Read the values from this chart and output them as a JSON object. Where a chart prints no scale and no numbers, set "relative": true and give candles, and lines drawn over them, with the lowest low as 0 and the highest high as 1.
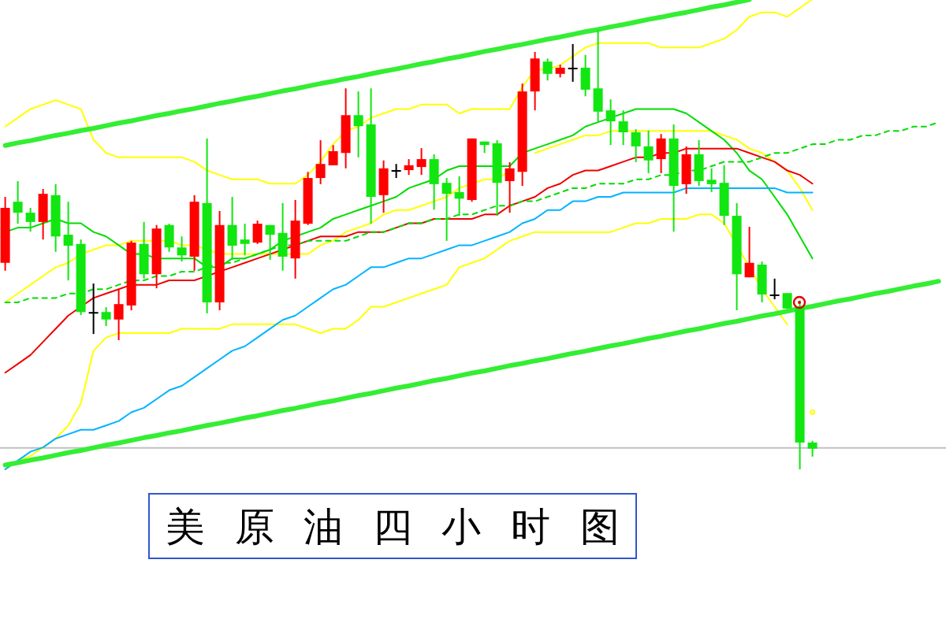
{
  "chart_data": {
    "type": "candlestick",
    "title": "美原油四小时图",
    "relative": true,
    "categories": [
      null,
      null,
      null,
      null,
      null,
      null,
      null,
      null,
      null,
      null,
      null,
      null,
      null,
      null,
      null,
      null,
      null,
      null,
      null,
      null,
      null,
      null,
      null,
      null,
      null,
      null,
      null,
      null,
      null,
      null,
      null,
      null,
      null,
      null,
      null,
      null,
      null,
      null,
      null,
      null,
      null,
      null,
      null,
      null,
      null,
      null,
      null,
      null,
      null,
      null,
      null,
      null,
      null,
      null,
      null,
      null,
      null,
      null,
      null,
      null,
      null,
      null,
      null,
      null,
      null,
      null,
      null,
      null,
      null,
      null,
      null,
      null,
      null,
      null,
      null
    ],
    "ohlc": [
      [
        0.47,
        0.62,
        0.452,
        0.595
      ],
      [
        0.609,
        0.656,
        0.559,
        0.584
      ],
      [
        0.584,
        0.595,
        0.541,
        0.563
      ],
      [
        0.563,
        0.638,
        0.523,
        0.627
      ],
      [
        0.624,
        0.649,
        0.495,
        0.53
      ],
      [
        0.534,
        0.609,
        0.43,
        0.509
      ],
      [
        0.513,
        0.523,
        0.351,
        0.358
      ],
      [
        0.358,
        0.423,
        0.308,
        0.358
      ],
      [
        0.358,
        0.369,
        0.326,
        0.341
      ],
      [
        0.341,
        0.409,
        0.294,
        0.376
      ],
      [
        0.373,
        0.52,
        0.362,
        0.516
      ],
      [
        0.513,
        0.563,
        0.434,
        0.444
      ],
      [
        0.444,
        0.556,
        0.412,
        0.548
      ],
      [
        0.556,
        0.559,
        0.495,
        0.505
      ],
      [
        0.505,
        0.53,
        0.473,
        0.487
      ],
      [
        0.484,
        0.624,
        0.452,
        0.609
      ],
      [
        0.606,
        0.753,
        0.355,
        0.38
      ],
      [
        0.38,
        0.588,
        0.362,
        0.556
      ],
      [
        0.556,
        0.62,
        0.477,
        0.509
      ],
      [
        0.523,
        0.559,
        0.487,
        0.513
      ],
      [
        0.516,
        0.566,
        0.513,
        0.559
      ],
      [
        0.556,
        0.556,
        0.477,
        0.534
      ],
      [
        0.538,
        0.606,
        0.452,
        0.484
      ],
      [
        0.48,
        0.613,
        0.434,
        0.566
      ],
      [
        0.559,
        0.677,
        0.556,
        0.663
      ],
      [
        0.663,
        0.749,
        0.649,
        0.695
      ],
      [
        0.692,
        0.738,
        0.692,
        0.724
      ],
      [
        0.72,
        0.867,
        0.685,
        0.806
      ],
      [
        0.806,
        0.86,
        0.71,
        0.781
      ],
      [
        0.785,
        0.867,
        0.559,
        0.62
      ],
      [
        0.624,
        0.703,
        0.584,
        0.685
      ],
      [
        0.681,
        0.695,
        0.663,
        0.681
      ],
      [
        0.681,
        0.706,
        0.67,
        0.692
      ],
      [
        0.688,
        0.731,
        0.67,
        0.706
      ],
      [
        0.706,
        0.717,
        0.591,
        0.649
      ],
      [
        0.652,
        0.663,
        0.52,
        0.627
      ],
      [
        0.631,
        0.667,
        0.577,
        0.616
      ],
      [
        0.613,
        0.753,
        0.609,
        0.753
      ],
      [
        0.746,
        0.746,
        0.72,
        0.738
      ],
      [
        0.742,
        0.749,
        0.577,
        0.652
      ],
      [
        0.656,
        0.699,
        0.584,
        0.685
      ],
      [
        0.677,
        0.878,
        0.645,
        0.86
      ],
      [
        0.86,
        0.95,
        0.817,
        0.935
      ],
      [
        0.928,
        0.935,
        0.885,
        0.9
      ],
      [
        0.9,
        0.921,
        0.892,
        0.914
      ],
      [
        0.914,
        0.968,
        0.882,
        0.914
      ],
      [
        0.914,
        0.943,
        0.849,
        0.864
      ],
      [
        0.867,
        1.0,
        0.792,
        0.814
      ],
      [
        0.817,
        0.842,
        0.738,
        0.792
      ],
      [
        0.792,
        0.817,
        0.738,
        0.767
      ],
      [
        0.767,
        0.774,
        0.699,
        0.735
      ],
      [
        0.735,
        0.771,
        0.674,
        0.703
      ],
      [
        0.706,
        0.763,
        0.674,
        0.753
      ],
      [
        0.753,
        0.785,
        0.541,
        0.645
      ],
      [
        0.649,
        0.735,
        0.627,
        0.717
      ],
      [
        0.717,
        0.749,
        0.645,
        0.656
      ],
      [
        0.659,
        0.685,
        0.631,
        0.649
      ],
      [
        0.652,
        0.692,
        0.556,
        0.577
      ],
      [
        0.577,
        0.606,
        0.362,
        0.444
      ],
      [
        0.437,
        0.552,
        0.437,
        0.47
      ],
      [
        0.466,
        0.473,
        0.38,
        0.398
      ],
      [
        0.398,
        0.434,
        0.387,
        0.398
      ],
      [
        0.401,
        0.401,
        0.366,
        0.366
      ],
      [
        0.369,
        0.384,
        0,
        0.061
      ],
      [
        0.061,
        0.065,
        0.029,
        0.047
      ],
      null,
      null,
      null,
      null,
      null,
      null,
      null,
      null,
      null,
      null
    ],
    "colors": [
      "#ff0000",
      "#11e611",
      "#11e611",
      "#ff0000",
      "#11e611",
      "#11e611",
      "#11e611",
      "#000000",
      "#11e611",
      "#ff0000",
      "#ff0000",
      "#11e611",
      "#ff0000",
      "#11e611",
      "#11e611",
      "#ff0000",
      "#11e611",
      "#ff0000",
      "#11e611",
      "#11e611",
      "#ff0000",
      "#11e611",
      "#11e611",
      "#ff0000",
      "#ff0000",
      "#ff0000",
      "#ff0000",
      "#ff0000",
      "#11e611",
      "#11e611",
      "#ff0000",
      "#000000",
      "#ff0000",
      "#ff0000",
      "#11e611",
      "#11e611",
      "#11e611",
      "#ff0000",
      "#11e611",
      "#11e611",
      "#ff0000",
      "#ff0000",
      "#ff0000",
      "#11e611",
      "#ff0000",
      "#000000",
      "#11e611",
      "#11e611",
      "#11e611",
      "#11e611",
      "#11e611",
      "#11e611",
      "#ff0000",
      "#11e611",
      "#ff0000",
      "#11e611",
      "#11e611",
      "#11e611",
      "#11e611",
      "#ff0000",
      "#11e611",
      "#000000",
      "#11e611",
      "#11e611",
      "#11e611",
      null,
      null,
      null,
      null,
      null,
      null,
      null,
      null,
      null,
      null
    ],
    "series": [
      {
        "type": "line",
        "color": "#ffff00",
        "values": [
          0.78,
          0.8,
          0.82,
          0.83,
          0.84,
          0.83,
          0.82,
          0.75,
          0.72,
          0.71,
          0.71,
          0.71,
          0.71,
          0.71,
          0.71,
          0.7,
          0.68,
          0.67,
          0.66,
          0.66,
          0.66,
          0.65,
          0.65,
          0.65,
          0.67,
          0.7,
          0.74,
          0.77,
          0.78,
          0.8,
          0.81,
          0.82,
          0.82,
          0.83,
          0.83,
          0.83,
          0.81,
          0.82,
          0.82,
          0.82,
          0.82,
          0.87,
          0.91,
          0.91,
          0.92,
          0.94,
          0.96,
          0.97,
          0.97,
          0.97,
          0.97,
          0.97,
          0.96,
          0.96,
          0.96,
          0.96,
          0.97,
          0.98,
          1.0,
          1.03,
          1.04,
          1.04,
          1.03,
          1.05,
          1.07,
          null,
          null,
          null,
          null,
          null,
          null,
          null,
          null,
          null,
          null
        ]
      },
      {
        "type": "line",
        "color": "#ffff00",
        "values": [
          0.38,
          0.4,
          0.42,
          0.44,
          0.46,
          0.47,
          0.49,
          0.5,
          0.51,
          0.51,
          0.52,
          0.52,
          0.52,
          0.52,
          0.51,
          0.51,
          0.5,
          0.49,
          0.49,
          0.49,
          0.49,
          0.49,
          0.49,
          0.49,
          0.49,
          0.51,
          0.52,
          0.54,
          0.55,
          0.56,
          0.58,
          0.59,
          0.59,
          0.6,
          0.61,
          0.62,
          0.64,
          0.65,
          0.66,
          0.66,
          0.68,
          null,
          0.72,
          0.73,
          0.74,
          0.75,
          0.76,
          0.76,
          0.77,
          0.77,
          0.77,
          0.77,
          0.77,
          0.77,
          0.77,
          0.77,
          0.77,
          0.76,
          0.75,
          0.73,
          0.72,
          0.7,
          0.68,
          0.64,
          0.59,
          null,
          null,
          null,
          null,
          null,
          null,
          null,
          null,
          null,
          null
        ]
      },
      {
        "type": "line",
        "color": "#ffff00",
        "values": [
          0.0,
          0.02,
          0.03,
          0.05,
          0.07,
          0.1,
          0.15,
          0.27,
          0.3,
          0.31,
          0.31,
          0.31,
          0.31,
          0.31,
          0.32,
          0.32,
          0.32,
          0.32,
          0.33,
          0.33,
          0.33,
          0.33,
          0.33,
          0.33,
          0.32,
          0.31,
          0.32,
          0.32,
          0.34,
          0.37,
          0.37,
          0.38,
          0.39,
          0.4,
          0.41,
          0.42,
          0.46,
          0.47,
          0.48,
          0.5,
          0.52,
          0.53,
          0.54,
          0.54,
          0.54,
          0.54,
          0.54,
          0.54,
          0.54,
          0.55,
          0.56,
          0.56,
          0.57,
          0.57,
          0.57,
          0.58,
          0.58,
          0.56,
          0.51,
          0.46,
          0.41,
          0.37,
          0.33,
          null,
          0.13,
          null,
          null,
          null,
          null,
          null,
          null,
          null,
          null,
          null,
          null
        ]
      },
      {
        "type": "line",
        "color": "#00dd00",
        "values": [
          0.54,
          0.55,
          0.55,
          0.56,
          0.57,
          0.56,
          0.56,
          0.54,
          0.53,
          0.51,
          0.49,
          0.49,
          0.48,
          0.48,
          0.48,
          0.48,
          0.46,
          0.46,
          0.48,
          0.48,
          0.49,
          0.5,
          0.52,
          0.53,
          0.54,
          0.55,
          0.57,
          0.58,
          0.59,
          0.6,
          0.61,
          0.62,
          0.64,
          0.65,
          0.66,
          0.68,
          0.69,
          0.69,
          0.69,
          0.69,
          0.69,
          0.72,
          0.73,
          0.74,
          0.75,
          0.76,
          0.78,
          0.79,
          0.8,
          0.81,
          0.82,
          0.82,
          0.82,
          0.82,
          0.81,
          0.79,
          0.77,
          0.75,
          0.72,
          0.68,
          0.66,
          0.62,
          0.58,
          0.53,
          0.48,
          null,
          null,
          null,
          null,
          null,
          null,
          null,
          null,
          null,
          null
        ]
      },
      {
        "type": "line",
        "color": "#ee0000",
        "values": [
          0.22,
          0.24,
          0.26,
          0.29,
          0.32,
          0.35,
          0.37,
          0.39,
          0.4,
          0.41,
          0.42,
          0.42,
          0.42,
          0.43,
          0.43,
          0.43,
          0.44,
          0.45,
          0.46,
          0.47,
          0.48,
          0.49,
          0.5,
          0.51,
          0.52,
          0.53,
          0.53,
          0.53,
          0.54,
          0.54,
          0.54,
          0.55,
          0.56,
          0.56,
          0.57,
          0.57,
          0.57,
          0.57,
          0.58,
          0.58,
          0.6,
          0.61,
          0.62,
          0.64,
          0.65,
          0.67,
          0.68,
          0.68,
          0.69,
          0.7,
          0.71,
          0.71,
          0.72,
          0.72,
          0.73,
          0.73,
          0.73,
          0.73,
          0.73,
          0.72,
          0.71,
          0.7,
          0.68,
          0.67,
          0.65,
          null,
          null,
          null,
          null,
          null,
          null,
          null,
          null,
          null,
          null
        ]
      },
      {
        "type": "line",
        "color": "#00b4ff",
        "values": [
          0.0,
          0.02,
          0.04,
          0.05,
          0.07,
          0.08,
          0.09,
          0.09,
          0.1,
          0.11,
          0.13,
          0.14,
          0.16,
          0.18,
          0.19,
          0.21,
          0.23,
          0.25,
          0.27,
          0.28,
          0.3,
          0.32,
          0.34,
          0.35,
          0.37,
          0.39,
          0.41,
          0.42,
          0.44,
          0.46,
          0.46,
          0.47,
          0.48,
          0.48,
          0.49,
          0.5,
          0.51,
          0.51,
          0.52,
          0.53,
          0.54,
          0.56,
          0.57,
          0.59,
          0.59,
          0.61,
          0.61,
          0.62,
          0.62,
          0.63,
          0.63,
          0.63,
          0.63,
          0.63,
          0.64,
          0.64,
          0.64,
          0.64,
          0.64,
          0.64,
          0.64,
          0.64,
          0.63,
          0.63,
          0.63,
          null,
          null,
          null,
          null,
          null,
          null,
          null,
          null,
          null,
          null
        ]
      },
      {
        "type": "line",
        "color": "#00dd00",
        "line_style": "dashed",
        "values": [
          0.38,
          0.38,
          0.39,
          0.39,
          0.39,
          0.4,
          0.4,
          0.41,
          0.41,
          0.42,
          0.43,
          0.43,
          0.44,
          0.44,
          0.45,
          0.45,
          0.46,
          0.47,
          0.47,
          0.48,
          0.49,
          0.5,
          0.51,
          0.51,
          0.52,
          0.52,
          0.52,
          0.52,
          0.53,
          0.54,
          0.54,
          0.55,
          0.56,
          0.56,
          0.57,
          0.57,
          0.58,
          0.58,
          0.59,
          0.6,
          0.6,
          0.61,
          0.61,
          0.62,
          0.63,
          0.64,
          0.64,
          0.65,
          0.65,
          0.65,
          0.66,
          0.66,
          0.67,
          0.67,
          0.68,
          0.68,
          0.69,
          0.7,
          0.7,
          0.7,
          0.71,
          0.72,
          0.72,
          0.73,
          0.74,
          0.74,
          0.75,
          0.75,
          0.76,
          0.76,
          0.77,
          0.77,
          0.78,
          0.78,
          0.79
        ]
      },
      {
        "type": "line",
        "color": "#33ee33",
        "values": [
          0.737,
          0.743,
          0.748,
          0.754,
          0.76,
          0.765,
          0.771,
          0.776,
          0.782,
          0.788,
          0.793,
          0.799,
          0.805,
          0.81,
          0.816,
          0.821,
          0.827,
          0.833,
          0.838,
          0.844,
          0.849,
          0.855,
          0.861,
          0.866,
          0.872,
          0.878,
          0.883,
          0.889,
          0.894,
          0.9,
          0.906,
          0.911,
          0.917,
          0.923,
          0.928,
          0.934,
          0.939,
          0.945,
          0.951,
          0.956,
          0.962,
          0.967,
          0.973,
          0.979,
          0.984,
          0.99,
          0.996,
          1.001,
          1.007,
          1.012,
          1.018,
          1.024,
          1.029,
          1.035,
          1.04,
          1.046,
          1.052,
          1.057,
          1.063,
          1.069,
          null,
          null,
          null,
          null,
          null,
          null,
          null,
          null,
          null,
          null,
          null,
          null,
          null,
          null,
          null
        ]
      },
      {
        "type": "line",
        "color": "#33ee33",
        "values": [
          0.01,
          0.015,
          0.021,
          0.026,
          0.032,
          0.038,
          0.043,
          0.049,
          0.055,
          0.06,
          0.066,
          0.072,
          0.077,
          0.083,
          0.088,
          0.094,
          0.1,
          0.105,
          0.111,
          0.117,
          0.122,
          0.128,
          0.134,
          0.139,
          0.145,
          0.151,
          0.156,
          0.162,
          0.168,
          0.173,
          0.179,
          0.185,
          0.19,
          0.196,
          0.202,
          0.207,
          0.213,
          0.219,
          0.224,
          0.23,
          0.236,
          0.241,
          0.247,
          0.252,
          0.258,
          0.264,
          0.269,
          0.275,
          0.281,
          0.286,
          0.292,
          0.298,
          0.303,
          0.309,
          0.315,
          0.32,
          0.326,
          0.332,
          0.337,
          0.343,
          0.349,
          0.354,
          0.36,
          0.366,
          0.371,
          0.377,
          0.383,
          0.388,
          0.394,
          0.4,
          0.405,
          0.411,
          0.417,
          0.422,
          0.428
        ]
      }
    ],
    "ref_lines": [
      {
        "axis": "y",
        "value": 0.049,
        "color": "#c0c0c0"
      }
    ]
  }
}
